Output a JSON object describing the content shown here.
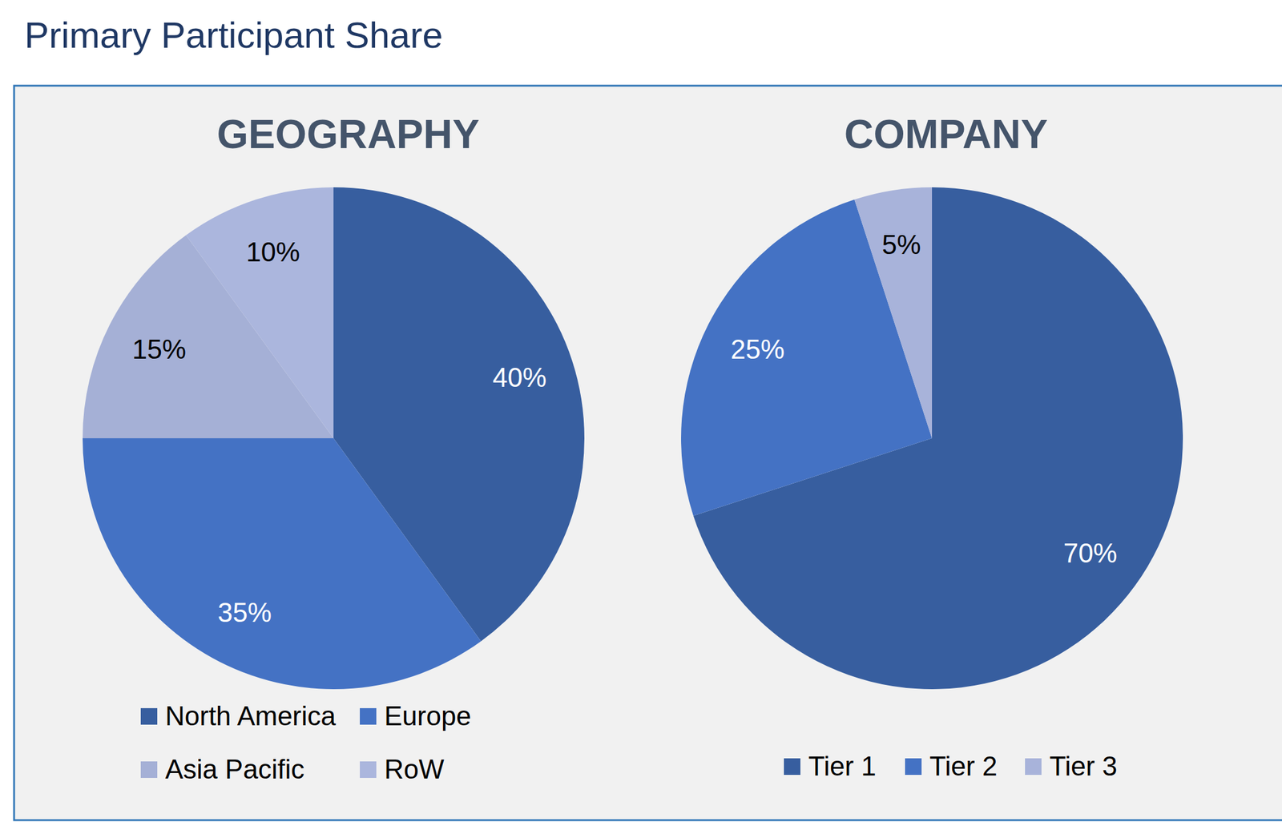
{
  "title": "Primary Participant Share",
  "chart_data": [
    {
      "type": "pie",
      "title": "GEOGRAPHY",
      "categories": [
        "North America",
        "Europe",
        "Asia Pacific",
        "RoW"
      ],
      "values": [
        40,
        35,
        15,
        10
      ],
      "value_labels": [
        "40%",
        "35%",
        "15%",
        "10%"
      ],
      "colors": [
        "#375e9f",
        "#4472c4",
        "#a5b0d6",
        "#abb6dd"
      ],
      "data_labels": true,
      "legend": "bottom"
    },
    {
      "type": "pie",
      "title": "COMPANY",
      "categories": [
        "Tier 1",
        "Tier 2",
        "Tier 3"
      ],
      "values": [
        70,
        25,
        5
      ],
      "value_labels": [
        "70%",
        "25%",
        "5%"
      ],
      "colors": [
        "#375e9f",
        "#4472c4",
        "#a8b3da"
      ],
      "data_labels": true,
      "legend": "bottom"
    }
  ]
}
